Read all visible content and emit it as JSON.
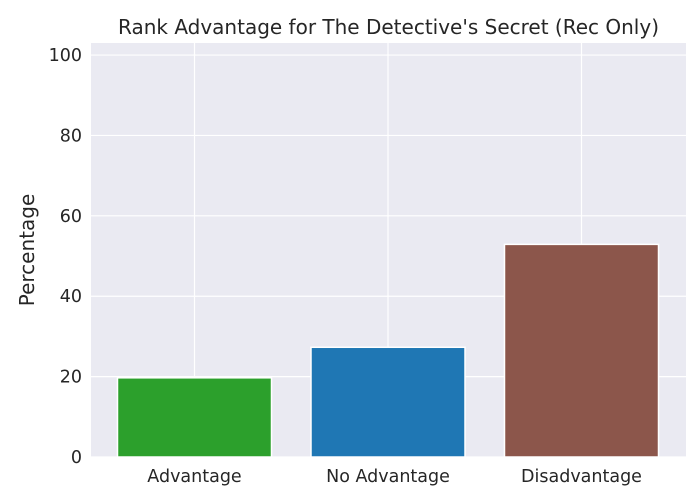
{
  "chart_data": {
    "type": "bar",
    "title": "Rank Advantage for The Detective's Secret (Rec Only)",
    "xlabel": "",
    "ylabel": "Percentage",
    "categories": [
      "Advantage",
      "No Advantage",
      "Disadvantage"
    ],
    "values": [
      19.7,
      27.3,
      52.9
    ],
    "colors": [
      "#2ca02c",
      "#1f77b4",
      "#8c564b"
    ],
    "ylim": [
      0,
      103
    ],
    "yticks": [
      0,
      20,
      40,
      60,
      80,
      100
    ],
    "grid": true,
    "background": "#eaeaf2",
    "grid_color": "#ffffff"
  }
}
